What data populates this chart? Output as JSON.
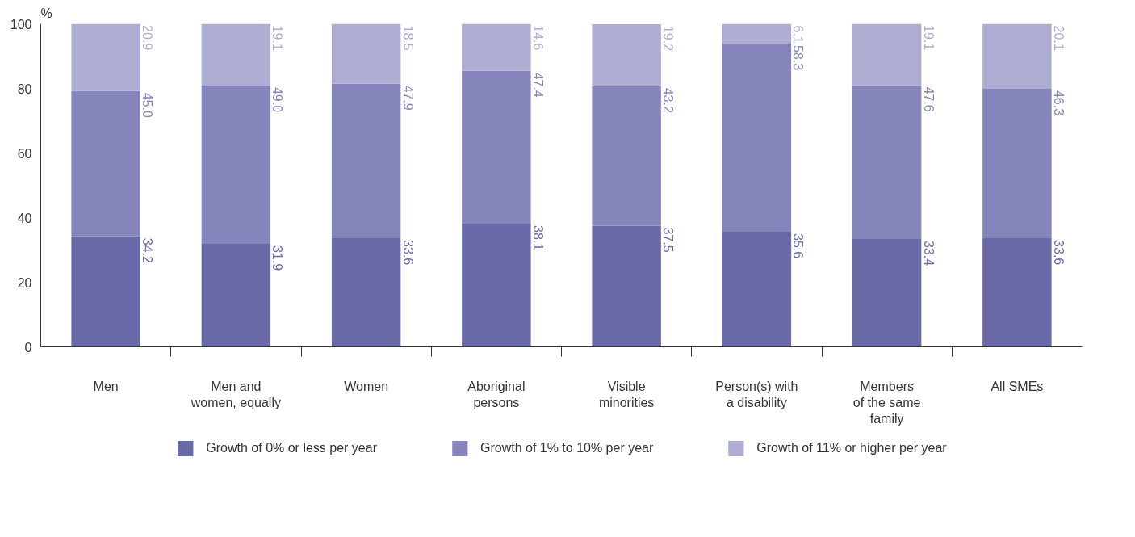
{
  "chart_data": {
    "type": "bar",
    "stacked": true,
    "ylabel": "%",
    "categories": [
      "Men",
      "Men and\nwomen, equally",
      "Women",
      "Aboriginal\npersons",
      "Visible\nminorities",
      "Person(s) with\na disability",
      "Members\nof the same\nfamily",
      "All SMEs"
    ],
    "series": [
      {
        "name": "Growth of 0% or less per year",
        "color": "#6a6aa8",
        "values": [
          34.2,
          31.9,
          33.6,
          38.1,
          37.5,
          35.6,
          33.4,
          33.6
        ],
        "value_labels": [
          "34.2",
          "31.9",
          "33.6",
          "38.1",
          "37.5",
          "35.6",
          "33.4",
          "33.6"
        ]
      },
      {
        "name": "Growth of 1% to 10% per year",
        "color": "#8585bb",
        "values": [
          45.0,
          49.0,
          47.9,
          47.4,
          43.2,
          58.3,
          47.6,
          46.3
        ],
        "value_labels": [
          "45.0",
          "49.0",
          "47.9",
          "47.4",
          "43.2",
          "58.3",
          "47.6",
          "46.3"
        ]
      },
      {
        "name": "Growth of 11% or higher per year",
        "color": "#adadd2",
        "values": [
          20.9,
          19.1,
          18.5,
          14.6,
          19.2,
          6.1,
          19.1,
          20.1
        ],
        "value_labels": [
          "20.9",
          "19.1",
          "18.5",
          "14.6",
          "19.2",
          "6.1",
          "19.1",
          "20.1"
        ]
      }
    ],
    "ylim": [
      0,
      100
    ],
    "yticks": [
      0,
      20,
      40,
      60,
      80,
      100
    ],
    "legend": "bottom",
    "grid": false
  }
}
